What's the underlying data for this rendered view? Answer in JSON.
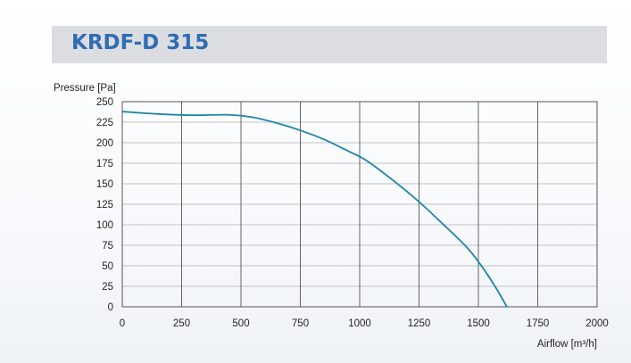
{
  "title": "KRDF-D 315",
  "colors": {
    "title": "#2f6db3",
    "curve": "#1f84a8",
    "title_bar": "#dcdde0",
    "grid": "#b0b0b0"
  },
  "chart_data": {
    "type": "line",
    "title": "KRDF-D 315",
    "xlabel": "Airflow [m³/h]",
    "ylabel": "Pressure [Pa]",
    "xlim": [
      0,
      2000
    ],
    "ylim": [
      0,
      250
    ],
    "xticks": [
      0,
      250,
      500,
      750,
      1000,
      1250,
      1500,
      1750,
      2000
    ],
    "yticks": [
      0,
      25,
      50,
      75,
      100,
      125,
      150,
      175,
      200,
      225,
      250
    ],
    "grid": true,
    "series": [
      {
        "x": [
          0,
          150,
          300,
          450,
          550,
          650,
          750,
          850,
          950,
          1030,
          1150,
          1250,
          1350,
          1450,
          1510,
          1570,
          1620
        ],
        "y": [
          238,
          235,
          233.5,
          234,
          231,
          224,
          215,
          204,
          190,
          178,
          152,
          128,
          101,
          73,
          51,
          25,
          0
        ]
      }
    ]
  }
}
